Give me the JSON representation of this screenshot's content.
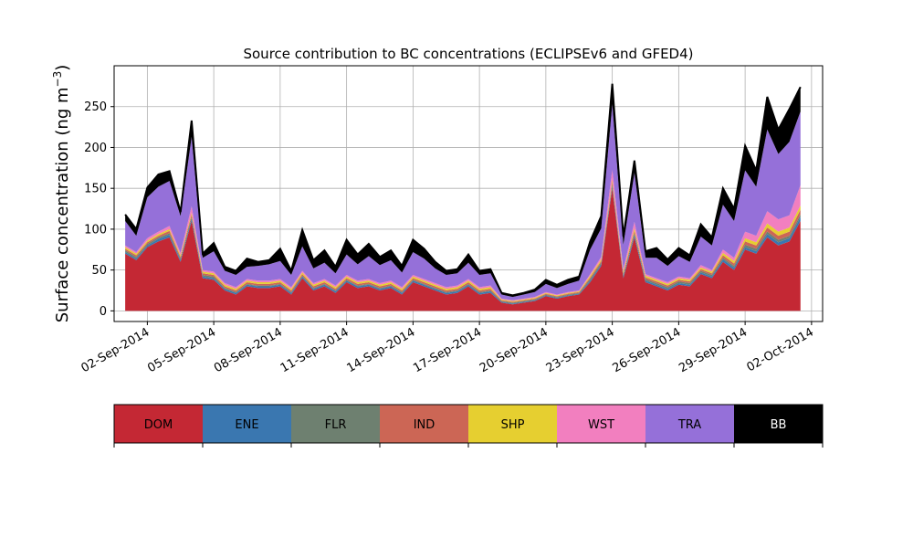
{
  "chart_data": {
    "type": "area",
    "stacked": true,
    "title": "Source contribution to BC concentrations (ECLIPSEv6 and GFED4)",
    "xlabel": "",
    "ylabel": "Surface concentration (ng m$^{-3}$)",
    "ylabel_text": "Surface concentration (ng m",
    "ylabel_sup": "−3",
    "ylabel_close": ")",
    "ylim": [
      -13,
      300
    ],
    "xlim": [
      "2014-08-31T12:00",
      "2014-10-02T12:00"
    ],
    "yticks": [
      0,
      50,
      100,
      150,
      200,
      250
    ],
    "xticks": [
      "2014-09-02",
      "2014-09-05",
      "2014-09-08",
      "2014-09-11",
      "2014-09-14",
      "2014-09-17",
      "2014-09-20",
      "2014-09-23",
      "2014-09-26",
      "2014-09-29",
      "2014-10-02"
    ],
    "xtick_labels": [
      "02-Sep-2014",
      "05-Sep-2014",
      "08-Sep-2014",
      "11-Sep-2014",
      "14-Sep-2014",
      "17-Sep-2014",
      "20-Sep-2014",
      "23-Sep-2014",
      "26-Sep-2014",
      "29-Sep-2014",
      "02-Oct-2014"
    ],
    "grid": true,
    "legend_placement": "below",
    "x": [
      "2014-09-01T00:00",
      "2014-09-01T12:00",
      "2014-09-02T00:00",
      "2014-09-02T12:00",
      "2014-09-03T00:00",
      "2014-09-03T12:00",
      "2014-09-04T00:00",
      "2014-09-04T12:00",
      "2014-09-05T00:00",
      "2014-09-05T12:00",
      "2014-09-06T00:00",
      "2014-09-06T12:00",
      "2014-09-07T00:00",
      "2014-09-07T12:00",
      "2014-09-08T00:00",
      "2014-09-08T12:00",
      "2014-09-09T00:00",
      "2014-09-09T12:00",
      "2014-09-10T00:00",
      "2014-09-10T12:00",
      "2014-09-11T00:00",
      "2014-09-11T12:00",
      "2014-09-12T00:00",
      "2014-09-12T12:00",
      "2014-09-13T00:00",
      "2014-09-13T12:00",
      "2014-09-14T00:00",
      "2014-09-14T12:00",
      "2014-09-15T00:00",
      "2014-09-15T12:00",
      "2014-09-16T00:00",
      "2014-09-16T12:00",
      "2014-09-17T00:00",
      "2014-09-17T12:00",
      "2014-09-18T00:00",
      "2014-09-18T12:00",
      "2014-09-19T00:00",
      "2014-09-19T12:00",
      "2014-09-20T00:00",
      "2014-09-20T12:00",
      "2014-09-21T00:00",
      "2014-09-21T12:00",
      "2014-09-22T00:00",
      "2014-09-22T12:00",
      "2014-09-23T00:00",
      "2014-09-23T12:00",
      "2014-09-24T00:00",
      "2014-09-24T12:00",
      "2014-09-25T00:00",
      "2014-09-25T12:00",
      "2014-09-26T00:00",
      "2014-09-26T12:00",
      "2014-09-27T00:00",
      "2014-09-27T12:00",
      "2014-09-28T00:00",
      "2014-09-28T12:00",
      "2014-09-29T00:00",
      "2014-09-29T12:00",
      "2014-09-30T00:00",
      "2014-09-30T12:00",
      "2014-10-01T00:00",
      "2014-10-01T12:00"
    ],
    "series": [
      {
        "name": "DOM",
        "color": "#c42834",
        "values": [
          70,
          62,
          78,
          85,
          90,
          60,
          110,
          40,
          38,
          25,
          20,
          30,
          28,
          28,
          30,
          20,
          40,
          25,
          30,
          22,
          35,
          28,
          30,
          25,
          28,
          20,
          35,
          30,
          25,
          20,
          22,
          30,
          20,
          22,
          10,
          8,
          10,
          12,
          18,
          15,
          18,
          20,
          35,
          55,
          150,
          40,
          90,
          35,
          30,
          25,
          32,
          30,
          45,
          40,
          60,
          50,
          75,
          70,
          90,
          80,
          85,
          110
        ]
      },
      {
        "name": "ENE",
        "color": "#3a77b0",
        "values": [
          2,
          2,
          2,
          3,
          3,
          2,
          3,
          2,
          2,
          2,
          2,
          2,
          2,
          2,
          2,
          2,
          2,
          2,
          2,
          2,
          2,
          2,
          2,
          2,
          2,
          2,
          2,
          2,
          2,
          2,
          2,
          2,
          2,
          2,
          1,
          1,
          1,
          1,
          1,
          1,
          1,
          1,
          2,
          2,
          3,
          2,
          3,
          2,
          2,
          2,
          2,
          2,
          2,
          2,
          3,
          3,
          3,
          3,
          4,
          4,
          4,
          5
        ]
      },
      {
        "name": "FLR",
        "color": "#6e8070",
        "values": [
          2,
          2,
          2,
          2,
          2,
          2,
          2,
          2,
          2,
          1,
          1,
          1,
          1,
          1,
          1,
          1,
          1,
          1,
          1,
          1,
          1,
          1,
          1,
          1,
          1,
          1,
          1,
          1,
          1,
          1,
          1,
          1,
          1,
          1,
          1,
          1,
          1,
          1,
          1,
          1,
          1,
          1,
          2,
          2,
          2,
          2,
          2,
          2,
          2,
          2,
          2,
          2,
          2,
          2,
          2,
          2,
          3,
          3,
          3,
          3,
          3,
          3
        ]
      },
      {
        "name": "IND",
        "color": "#cc6655",
        "values": [
          2,
          2,
          2,
          2,
          3,
          2,
          3,
          2,
          2,
          2,
          2,
          2,
          2,
          2,
          2,
          2,
          2,
          2,
          2,
          2,
          2,
          2,
          2,
          2,
          2,
          2,
          2,
          2,
          2,
          2,
          2,
          2,
          2,
          2,
          1,
          1,
          1,
          1,
          1,
          1,
          1,
          1,
          2,
          2,
          3,
          2,
          3,
          2,
          2,
          2,
          2,
          2,
          2,
          2,
          3,
          3,
          4,
          4,
          5,
          5,
          5,
          6
        ]
      },
      {
        "name": "SHP",
        "color": "#e6cf30",
        "values": [
          2,
          2,
          2,
          2,
          2,
          2,
          2,
          2,
          2,
          2,
          2,
          2,
          2,
          2,
          2,
          2,
          2,
          2,
          2,
          2,
          2,
          2,
          2,
          2,
          2,
          2,
          2,
          2,
          2,
          2,
          2,
          2,
          2,
          2,
          1,
          1,
          1,
          1,
          1,
          1,
          1,
          1,
          2,
          2,
          3,
          2,
          3,
          2,
          2,
          2,
          2,
          2,
          2,
          2,
          3,
          3,
          4,
          4,
          5,
          5,
          5,
          5
        ]
      },
      {
        "name": "WST",
        "color": "#f27fbf",
        "values": [
          2,
          2,
          3,
          3,
          4,
          3,
          8,
          2,
          2,
          2,
          2,
          2,
          2,
          2,
          2,
          2,
          2,
          2,
          2,
          2,
          2,
          2,
          2,
          2,
          2,
          2,
          2,
          2,
          2,
          2,
          2,
          2,
          2,
          2,
          1,
          1,
          1,
          1,
          1,
          1,
          1,
          1,
          2,
          3,
          12,
          3,
          8,
          2,
          2,
          2,
          2,
          2,
          3,
          2,
          4,
          4,
          8,
          8,
          15,
          15,
          15,
          25
        ]
      },
      {
        "name": "TRA",
        "color": "#9570d9",
        "values": [
          30,
          20,
          50,
          55,
          55,
          45,
          85,
          15,
          25,
          15,
          15,
          15,
          18,
          20,
          22,
          15,
          30,
          18,
          20,
          15,
          25,
          20,
          28,
          22,
          25,
          18,
          28,
          25,
          18,
          15,
          15,
          20,
          15,
          15,
          5,
          4,
          5,
          6,
          10,
          8,
          10,
          12,
          30,
          35,
          80,
          30,
          60,
          20,
          25,
          20,
          25,
          20,
          35,
          30,
          55,
          45,
          75,
          60,
          100,
          80,
          90,
          90
        ]
      },
      {
        "name": "BB",
        "color": "#000000",
        "values": [
          8,
          8,
          12,
          15,
          12,
          5,
          20,
          5,
          10,
          5,
          5,
          10,
          5,
          5,
          15,
          5,
          20,
          10,
          15,
          8,
          18,
          12,
          15,
          10,
          12,
          8,
          15,
          12,
          8,
          5,
          5,
          10,
          5,
          5,
          2,
          2,
          2,
          3,
          5,
          4,
          5,
          5,
          10,
          15,
          25,
          10,
          15,
          8,
          12,
          8,
          10,
          8,
          15,
          10,
          20,
          15,
          30,
          20,
          40,
          30,
          40,
          30
        ]
      }
    ]
  }
}
